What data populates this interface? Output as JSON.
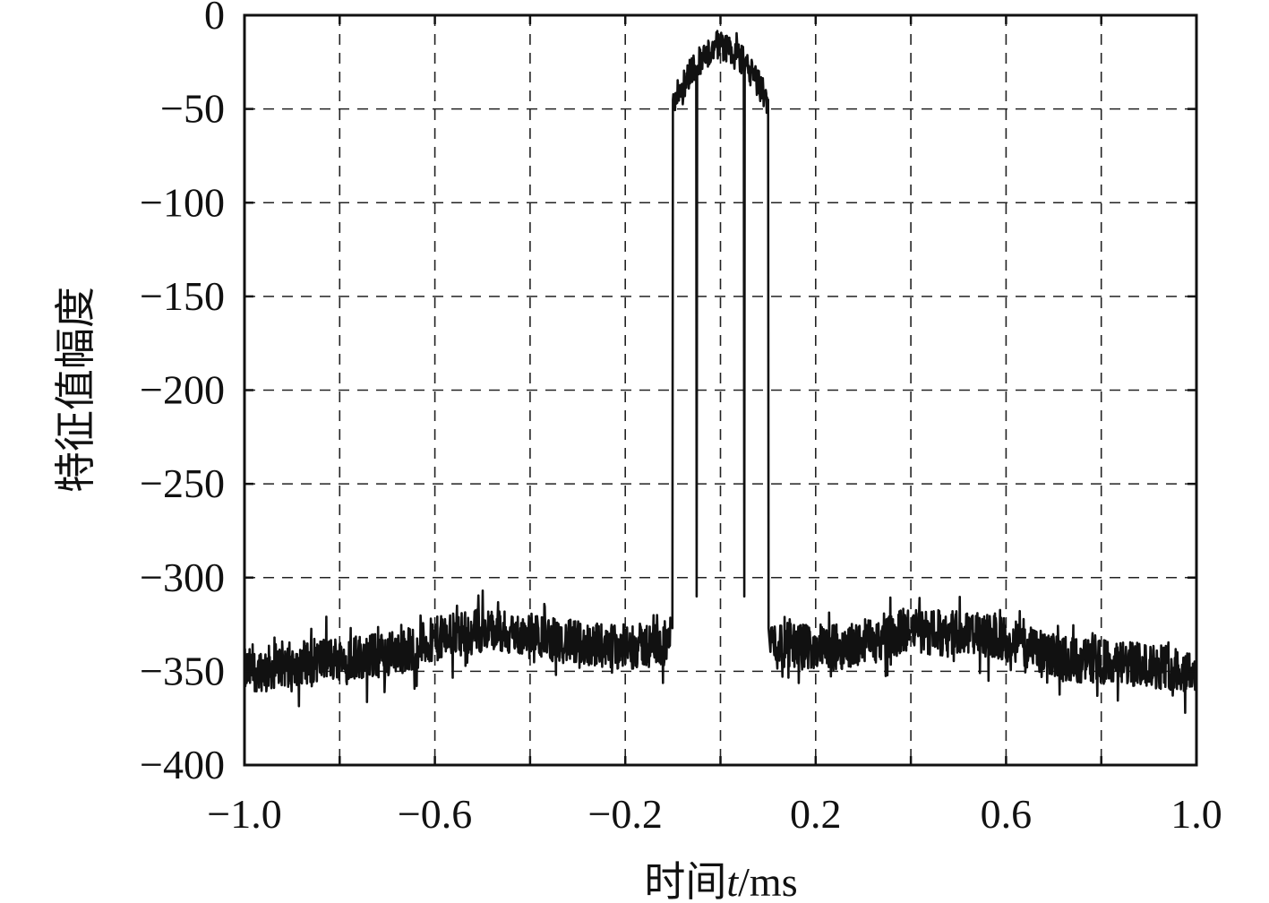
{
  "chart_data": {
    "type": "line",
    "title": "",
    "xlabel_zh": "时间",
    "xlabel_var": "t",
    "xlabel_unit": "/ms",
    "ylabel": "特征值幅度",
    "xlim": [
      -1.0,
      1.0
    ],
    "ylim": [
      -400,
      0
    ],
    "x_ticks": [
      -1.0,
      -0.8,
      -0.6,
      -0.4,
      -0.2,
      0.0,
      0.2,
      0.4,
      0.6,
      0.8,
      1.0
    ],
    "x_tick_labels": [
      "−1.0",
      "−0.6",
      "−0.2",
      "0.2",
      "0.6",
      "1.0"
    ],
    "x_labeled_ticks": [
      -1.0,
      -0.6,
      -0.2,
      0.2,
      0.6,
      1.0
    ],
    "y_ticks": [
      0,
      -50,
      -100,
      -150,
      -200,
      -250,
      -300,
      -350,
      -400
    ],
    "y_tick_labels": [
      "0",
      "−50",
      "−100",
      "−150",
      "−200",
      "−250",
      "−300",
      "−350",
      "−400"
    ],
    "grid": true,
    "series": [
      {
        "x": [
          -1.0,
          -0.95,
          -0.9,
          -0.85,
          -0.8,
          -0.75,
          -0.7,
          -0.65,
          -0.6,
          -0.55,
          -0.5,
          -0.45,
          -0.4,
          -0.35,
          -0.3,
          -0.25,
          -0.2,
          -0.15,
          -0.11,
          -0.1,
          -0.1,
          -0.05,
          -0.05,
          -0.05,
          0.0,
          0.05,
          0.05,
          0.05,
          0.1,
          0.1,
          0.11,
          0.15,
          0.2,
          0.25,
          0.3,
          0.35,
          0.4,
          0.45,
          0.5,
          0.55,
          0.6,
          0.65,
          0.7,
          0.75,
          0.8,
          0.85,
          0.9,
          0.95,
          1.0
        ],
        "y": [
          -350,
          -348,
          -346,
          -344,
          -343,
          -342,
          -341,
          -338,
          -333,
          -330,
          -328,
          -330,
          -331,
          -333,
          -335,
          -336,
          -337,
          -336,
          -335,
          -327,
          -45,
          -25,
          -310,
          -25,
          -15,
          -25,
          -310,
          -25,
          -45,
          -327,
          -335,
          -336,
          -337,
          -337,
          -335,
          -332,
          -328,
          -330,
          -329,
          -331,
          -333,
          -338,
          -342,
          -344,
          -345,
          -346,
          -347,
          -348,
          -350
        ],
        "noise_amplitude_outside": 12,
        "noise_amplitude_inside": 8
      }
    ]
  }
}
